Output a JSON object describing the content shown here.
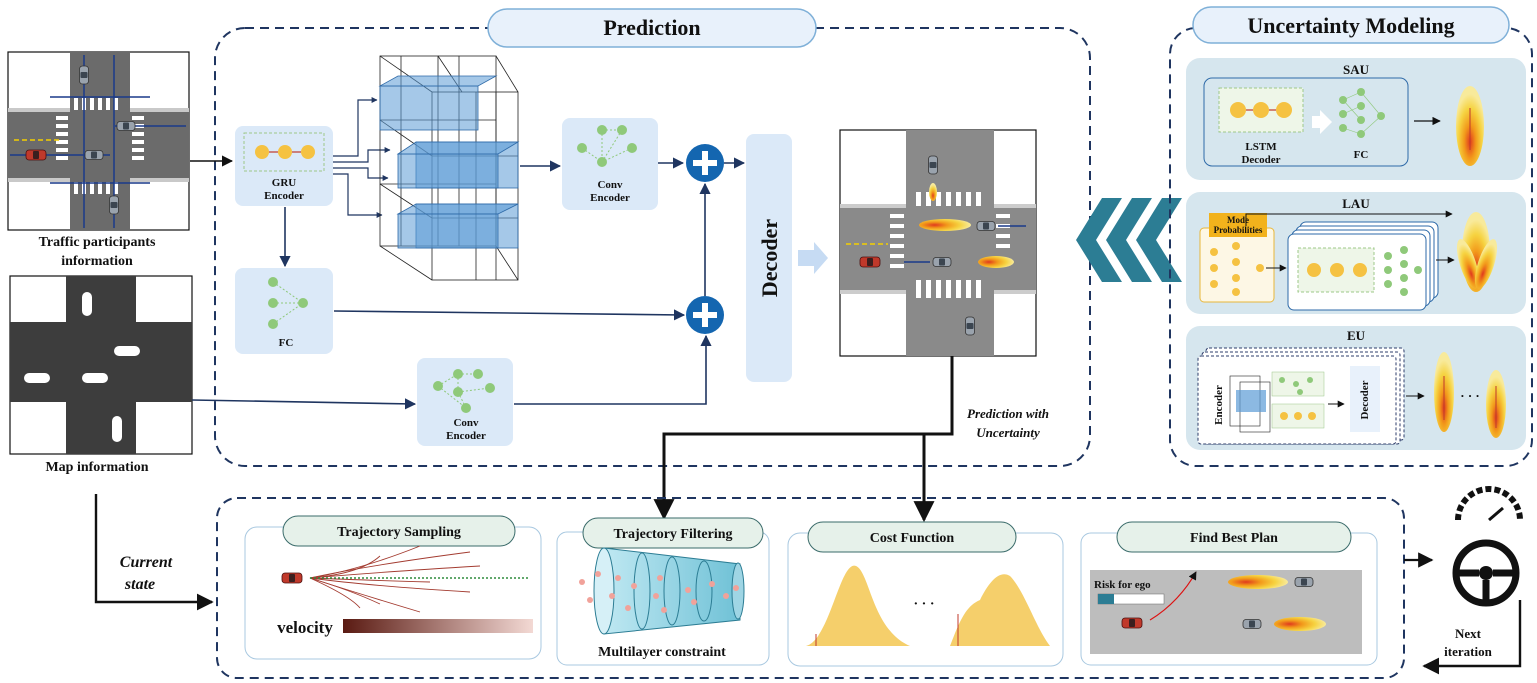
{
  "sections": {
    "prediction": "Prediction",
    "uncertainty": "Uncertainty Modeling"
  },
  "inputs": {
    "traffic_line1": "Traffic participants",
    "traffic_line2": "information",
    "map": "Map information"
  },
  "prediction": {
    "gru_line1": "GRU",
    "gru_line2": "Encoder",
    "fc": "FC",
    "conv_top_line1": "Conv",
    "conv_top_line2": "Encoder",
    "conv_bot_line1": "Conv",
    "conv_bot_line2": "Encoder",
    "decoder": "Decoder",
    "output_line1": "Prediction with",
    "output_line2": "Uncertainty"
  },
  "uncertainty": {
    "sau": "SAU",
    "sau_lstm_line1": "LSTM",
    "sau_lstm_line2": "Decoder",
    "sau_fc": "FC",
    "lau": "LAU",
    "lau_mode_line1": "Mode",
    "lau_mode_line2": "Probabilities",
    "eu": "EU",
    "eu_encoder": "Encoder",
    "eu_decoder": "Decoder",
    "eu_ellipsis": "· · ·"
  },
  "planning": {
    "current_line1": "Current",
    "current_line2": "state",
    "sampling": "Trajectory Sampling",
    "velocity": "velocity",
    "filtering": "Trajectory Filtering",
    "multilayer": "Multilayer constraint",
    "cost": "Cost Function",
    "cost_ellipsis": "· · ·",
    "best": "Find Best Plan",
    "risk": "Risk for ego",
    "next_line1": "Next",
    "next_line2": "iteration"
  },
  "colors": {
    "section_border": "#1f3560",
    "panel_fill": "#dbe9f8",
    "uncertainty_panel": "#d6e6ee",
    "pill_fill": "#e8f1fb",
    "node_green": "#8fc97a",
    "node_yellow": "#f5c242",
    "plus_blue": "#1466b0",
    "chevron": "#2c7d94",
    "ego_red": "#c0392b",
    "cost_fill": "#f5cf6b"
  },
  "icons": [
    "steering-wheel-icon",
    "gauge-icon",
    "plus-icon",
    "car-icon",
    "chevron-left-icon"
  ]
}
